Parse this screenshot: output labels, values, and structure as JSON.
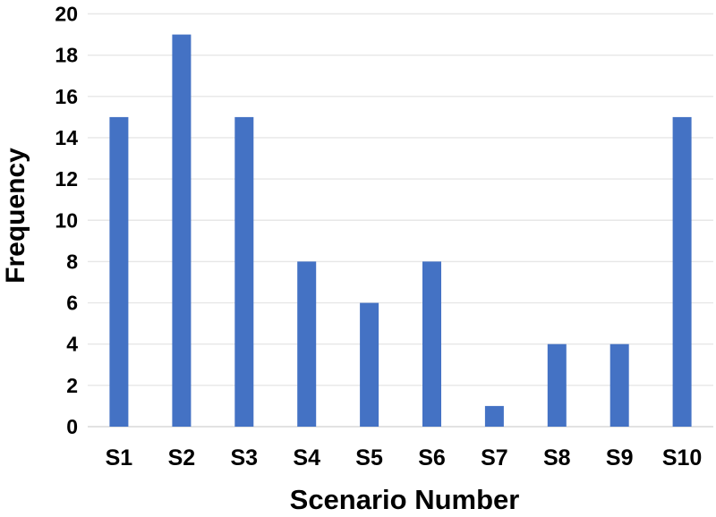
{
  "chart_data": {
    "type": "bar",
    "title": "",
    "categories": [
      "S1",
      "S2",
      "S3",
      "S4",
      "S5",
      "S6",
      "S7",
      "S8",
      "S9",
      "S10"
    ],
    "values": [
      15,
      19,
      15,
      8,
      6,
      8,
      1,
      4,
      4,
      15
    ],
    "xlabel": "Scenario Number",
    "ylabel": "Frequency",
    "ylim": [
      0,
      20
    ],
    "ytick_step": 2,
    "ytick_labels": [
      "0",
      "2",
      "4",
      "6",
      "8",
      "10",
      "12",
      "14",
      "16",
      "18",
      "20"
    ],
    "grid": "horizontal",
    "legend_position": "none",
    "colors": {
      "bar_fill": "#4472C4",
      "gridline": "#E7E7E7",
      "axis_baseline": "#D9D9D9",
      "text": "#000000",
      "background": "#FFFFFF"
    }
  }
}
